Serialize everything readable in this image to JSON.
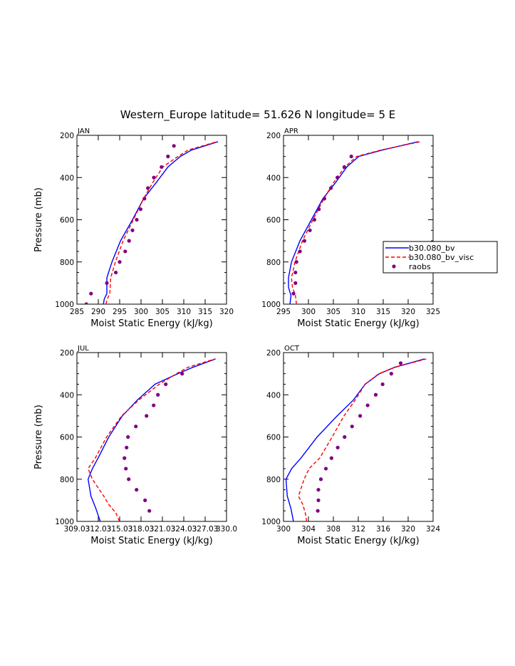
{
  "title": "Western_Europe  latitude= 51.626 N longitude= 5 E",
  "legend": [
    {
      "label": "b30.080_bv",
      "color": "#0000ff",
      "style": "solid"
    },
    {
      "label": "b30.080_bv_visc",
      "color": "#ff0000",
      "style": "dashed"
    },
    {
      "label": "raobs",
      "color": "#800080",
      "style": "dots"
    }
  ],
  "chart_data": [
    {
      "type": "line",
      "panel": "JAN",
      "xlabel": "Moist Static Energy (kJ/kg)",
      "ylabel": "Pressure (mb)",
      "xlim": [
        285,
        320
      ],
      "xticks": [
        285,
        290,
        295,
        300,
        305,
        310,
        315,
        320
      ],
      "xtick_labels": [
        "285",
        "290",
        "295",
        "300",
        "305",
        "310",
        "315",
        "320"
      ],
      "ylim": [
        1000,
        200
      ],
      "yticks": [
        200,
        400,
        600,
        800,
        1000
      ],
      "series": [
        {
          "name": "b30.080_bv",
          "x": [
            291.2,
            291.4,
            292.0,
            292.0,
            293.2,
            295.2,
            298.0,
            300.6,
            303.5,
            306.3,
            309.2,
            311.8,
            318.0
          ],
          "y": [
            1000,
            975,
            950,
            875,
            800,
            700,
            600,
            500,
            425,
            350,
            300,
            270,
            230
          ]
        },
        {
          "name": "b30.080_bv_visc",
          "x": [
            291.8,
            292.1,
            292.7,
            292.9,
            294.0,
            295.8,
            298.2,
            300.6,
            302.7,
            305.1,
            307.9,
            311.0,
            317.8
          ],
          "y": [
            1000,
            975,
            950,
            875,
            800,
            700,
            600,
            500,
            425,
            350,
            310,
            270,
            230
          ]
        },
        {
          "name": "raobs",
          "x": [
            287.2,
            288.3,
            292.0,
            294.1,
            295.0,
            296.3,
            297.2,
            298.0,
            299.0,
            299.9,
            300.8,
            301.6,
            303.0,
            304.8,
            306.3,
            307.7
          ],
          "y": [
            1000,
            950,
            900,
            850,
            800,
            750,
            700,
            650,
            600,
            550,
            500,
            450,
            400,
            350,
            300,
            250
          ]
        }
      ]
    },
    {
      "type": "line",
      "panel": "APR",
      "xlabel": "Moist Static Energy (kJ/kg)",
      "ylabel": "",
      "xlim": [
        295,
        325
      ],
      "xticks": [
        295,
        300,
        305,
        310,
        315,
        320,
        325
      ],
      "xtick_labels": [
        "295",
        "300",
        "305",
        "310",
        "315",
        "320",
        "325"
      ],
      "ylim": [
        1000,
        200
      ],
      "yticks": [
        200,
        400,
        600,
        800,
        1000
      ],
      "series": [
        {
          "name": "b30.080_bv",
          "x": [
            296.3,
            296.5,
            296.0,
            296.0,
            296.6,
            298.3,
            300.6,
            302.9,
            305.4,
            307.7,
            310.1,
            314.8,
            322.0
          ],
          "y": [
            1000,
            960,
            920,
            875,
            800,
            700,
            600,
            500,
            425,
            350,
            300,
            270,
            230
          ]
        },
        {
          "name": "b30.080_bv_visc",
          "x": [
            297.6,
            297.4,
            296.8,
            296.6,
            297.3,
            298.8,
            300.9,
            303.1,
            305.0,
            307.3,
            309.7,
            314.5,
            322.5
          ],
          "y": [
            1000,
            960,
            920,
            875,
            800,
            700,
            600,
            500,
            425,
            350,
            300,
            270,
            230
          ]
        },
        {
          "name": "raobs",
          "x": [
            297.0,
            297.4,
            297.4,
            297.6,
            298.3,
            299.2,
            300.3,
            301.2,
            302.1,
            303.2,
            304.5,
            305.8,
            307.2,
            308.6
          ],
          "y": [
            950,
            900,
            850,
            800,
            750,
            700,
            650,
            600,
            550,
            500,
            450,
            400,
            350,
            300
          ]
        }
      ]
    },
    {
      "type": "line",
      "panel": "JUL",
      "xlabel": "Moist Static Energy (kJ/kg)",
      "ylabel": "Pressure (mb)",
      "xlim": [
        309.03,
        330.03
      ],
      "xticks": [
        309.03,
        312.03,
        315.03,
        318.03,
        321.03,
        324.03,
        327.03,
        330.03
      ],
      "xtick_labels": [
        "309.03",
        "312.03",
        "315.03",
        "318.03",
        "321.03",
        "324.03",
        "327.03",
        "330.0"
      ],
      "ylim": [
        1000,
        200
      ],
      "yticks": [
        200,
        400,
        600,
        800,
        1000
      ],
      "series": [
        {
          "name": "b30.080_bv",
          "x": [
            312.3,
            311.7,
            311.0,
            310.6,
            311.2,
            312.0,
            313.5,
            315.4,
            317.5,
            320.0,
            323.2,
            325.3,
            328.5
          ],
          "y": [
            1000,
            940,
            880,
            800,
            750,
            700,
            600,
            500,
            425,
            350,
            300,
            270,
            230
          ]
        },
        {
          "name": "b30.080_bv_visc",
          "x": [
            315.0,
            314.5,
            313.5,
            312.8,
            311.2,
            310.6,
            311.6,
            313.2,
            315.3,
            317.7,
            320.6,
            323.0,
            324.6,
            328.4
          ],
          "y": [
            1000,
            960,
            920,
            880,
            800,
            750,
            700,
            600,
            500,
            425,
            350,
            300,
            270,
            230
          ]
        },
        {
          "name": "raobs",
          "x": [
            319.2,
            318.6,
            317.4,
            316.3,
            315.9,
            315.7,
            316.0,
            316.2,
            317.3,
            318.8,
            319.8,
            320.4,
            321.5,
            323.8
          ],
          "y": [
            950,
            900,
            850,
            800,
            750,
            700,
            650,
            600,
            550,
            500,
            450,
            400,
            350,
            300
          ]
        }
      ]
    },
    {
      "type": "line",
      "panel": "OCT",
      "xlabel": "Moist Static Energy (kJ/kg)",
      "ylabel": "",
      "xlim": [
        300,
        324
      ],
      "xticks": [
        300,
        304,
        308,
        312,
        316,
        320,
        324
      ],
      "xtick_labels": [
        "300",
        "304",
        "308",
        "312",
        "316",
        "320",
        "324"
      ],
      "ylim": [
        1000,
        200
      ],
      "yticks": [
        200,
        400,
        600,
        800,
        1000
      ],
      "series": [
        {
          "name": "b30.080_bv",
          "x": [
            301.6,
            301.2,
            300.6,
            300.4,
            301.3,
            302.8,
            305.4,
            308.6,
            311.2,
            313.1,
            315.4,
            317.8,
            322.6
          ],
          "y": [
            1000,
            940,
            880,
            800,
            750,
            700,
            600,
            500,
            425,
            350,
            300,
            270,
            230
          ]
        },
        {
          "name": "b30.080_bv_visc",
          "x": [
            303.7,
            303.5,
            303.1,
            302.4,
            303.3,
            304.1,
            305.8,
            307.8,
            309.7,
            311.5,
            313.1,
            315.3,
            317.9,
            322.9
          ],
          "y": [
            1000,
            960,
            920,
            880,
            800,
            750,
            700,
            600,
            500,
            425,
            350,
            300,
            270,
            230
          ]
        },
        {
          "name": "raobs",
          "x": [
            305.5,
            305.6,
            305.6,
            306.0,
            306.8,
            307.7,
            308.7,
            309.8,
            311.0,
            312.3,
            313.5,
            314.8,
            315.9,
            317.3,
            318.8
          ],
          "y": [
            950,
            900,
            850,
            800,
            750,
            700,
            650,
            600,
            550,
            500,
            450,
            400,
            350,
            300,
            250
          ]
        }
      ]
    }
  ]
}
